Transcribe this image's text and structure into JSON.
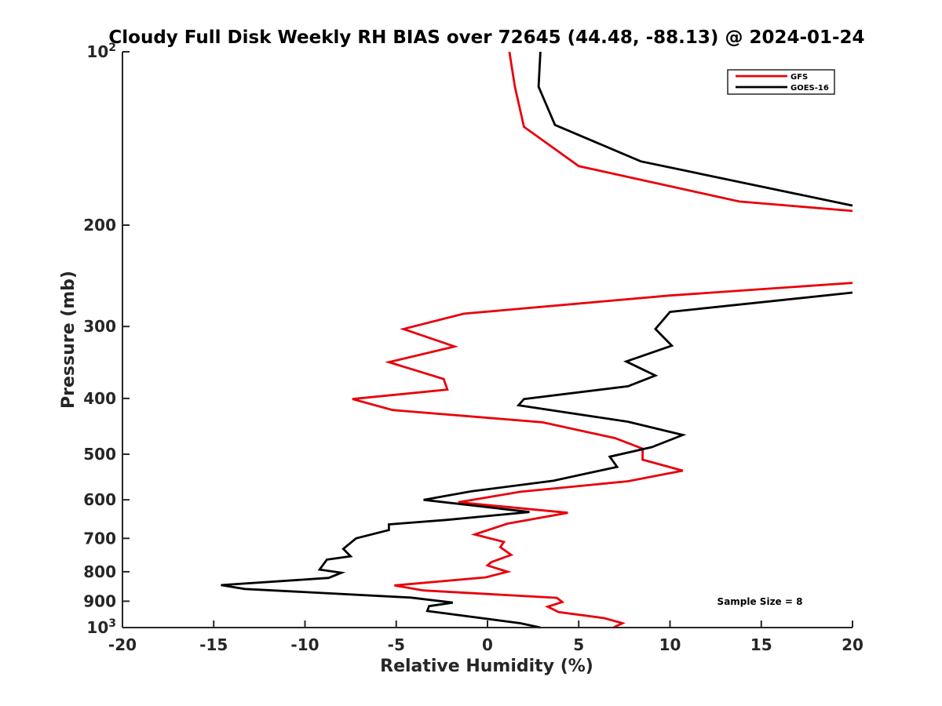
{
  "chart_data": {
    "type": "line",
    "title": "Cloudy Full Disk Weekly RH BIAS over 72645 (44.48, -88.13) @ 2024-01-24",
    "xlabel": "Relative Humidity (%)",
    "ylabel": "Pressure (mb)",
    "xlim": [
      -20,
      20
    ],
    "ylim": [
      100,
      1000
    ],
    "y_scale": "log",
    "y_reversed": true,
    "grid": false,
    "legend_position": "top-right",
    "x_ticks": [
      -20,
      -15,
      -10,
      -5,
      0,
      5,
      10,
      15,
      20
    ],
    "x_tick_labels": [
      "-20",
      "-15",
      "-10",
      "-5",
      "0",
      "5",
      "10",
      "15",
      "20"
    ],
    "y_ticks": [
      {
        "value": 100,
        "base": "10",
        "exp": "2"
      },
      {
        "value": 200,
        "label": "200"
      },
      {
        "value": 300,
        "label": "300"
      },
      {
        "value": 400,
        "label": "400"
      },
      {
        "value": 500,
        "label": "500"
      },
      {
        "value": 600,
        "label": "600"
      },
      {
        "value": 700,
        "label": "700"
      },
      {
        "value": 800,
        "label": "800"
      },
      {
        "value": 900,
        "label": "900"
      },
      {
        "value": 1000,
        "base": "10",
        "exp": "3"
      }
    ],
    "annotation": "Sample Size = 8",
    "series": [
      {
        "name": "GFS",
        "color": "#e8000b",
        "segments": [
          [
            {
              "x": 1.2,
              "p": 100
            },
            {
              "x": 1.5,
              "p": 115
            },
            {
              "x": 2.0,
              "p": 135
            },
            {
              "x": 5.0,
              "p": 158
            },
            {
              "x": 13.8,
              "p": 182
            },
            {
              "x": 20.0,
              "p": 189
            }
          ],
          [
            {
              "x": 20.0,
              "p": 252
            },
            {
              "x": 10.0,
              "p": 265
            },
            {
              "x": -1.3,
              "p": 285
            },
            {
              "x": -4.6,
              "p": 303
            },
            {
              "x": -1.8,
              "p": 325
            },
            {
              "x": -5.4,
              "p": 346
            },
            {
              "x": -2.4,
              "p": 370
            },
            {
              "x": -2.2,
              "p": 386
            },
            {
              "x": -7.4,
              "p": 401
            },
            {
              "x": -5.2,
              "p": 419
            },
            {
              "x": 3.0,
              "p": 440
            },
            {
              "x": 7.0,
              "p": 469
            },
            {
              "x": 8.5,
              "p": 489
            },
            {
              "x": 8.5,
              "p": 511
            },
            {
              "x": 10.7,
              "p": 534
            },
            {
              "x": 7.7,
              "p": 557
            },
            {
              "x": 1.8,
              "p": 581
            },
            {
              "x": -1.6,
              "p": 606
            },
            {
              "x": 4.4,
              "p": 632
            },
            {
              "x": 1.1,
              "p": 660
            },
            {
              "x": -0.7,
              "p": 689
            },
            {
              "x": 0.9,
              "p": 710
            },
            {
              "x": 0.7,
              "p": 725
            },
            {
              "x": 1.3,
              "p": 748
            },
            {
              "x": 0.2,
              "p": 770
            },
            {
              "x": 0.0,
              "p": 780
            },
            {
              "x": 1.1,
              "p": 800
            },
            {
              "x": -0.1,
              "p": 818
            },
            {
              "x": -5.1,
              "p": 845
            },
            {
              "x": -3.5,
              "p": 862
            },
            {
              "x": 3.8,
              "p": 888
            },
            {
              "x": 4.1,
              "p": 903
            },
            {
              "x": 3.3,
              "p": 920
            },
            {
              "x": 3.9,
              "p": 940
            },
            {
              "x": 6.4,
              "p": 963
            },
            {
              "x": 7.4,
              "p": 983
            },
            {
              "x": 6.9,
              "p": 1000
            }
          ]
        ]
      },
      {
        "name": "GOES-16",
        "color": "#000000",
        "segments": [
          [
            {
              "x": 2.9,
              "p": 100
            },
            {
              "x": 2.8,
              "p": 115
            },
            {
              "x": 3.7,
              "p": 134
            },
            {
              "x": 8.4,
              "p": 155
            },
            {
              "x": 20.0,
              "p": 185
            }
          ],
          [
            {
              "x": 20.0,
              "p": 262
            },
            {
              "x": 10.0,
              "p": 283
            },
            {
              "x": 9.2,
              "p": 303
            },
            {
              "x": 10.1,
              "p": 324
            },
            {
              "x": 7.6,
              "p": 345
            },
            {
              "x": 9.2,
              "p": 365
            },
            {
              "x": 7.7,
              "p": 381
            },
            {
              "x": 2.0,
              "p": 401
            },
            {
              "x": 1.7,
              "p": 411
            },
            {
              "x": 7.7,
              "p": 439
            },
            {
              "x": 10.7,
              "p": 463
            },
            {
              "x": 9.0,
              "p": 486
            },
            {
              "x": 6.7,
              "p": 505
            },
            {
              "x": 7.1,
              "p": 526
            },
            {
              "x": 3.6,
              "p": 556
            },
            {
              "x": -0.9,
              "p": 580
            },
            {
              "x": -3.5,
              "p": 600
            },
            {
              "x": 2.3,
              "p": 630
            },
            {
              "x": -2.2,
              "p": 650
            },
            {
              "x": -5.4,
              "p": 662
            },
            {
              "x": -5.4,
              "p": 677
            },
            {
              "x": -7.2,
              "p": 700
            },
            {
              "x": -7.9,
              "p": 730
            },
            {
              "x": -7.5,
              "p": 752
            },
            {
              "x": -8.8,
              "p": 762
            },
            {
              "x": -9.2,
              "p": 793
            },
            {
              "x": -8.0,
              "p": 803
            },
            {
              "x": -8.7,
              "p": 820
            },
            {
              "x": -14.6,
              "p": 844
            },
            {
              "x": -13.3,
              "p": 857
            },
            {
              "x": -4.2,
              "p": 887
            },
            {
              "x": -1.9,
              "p": 905
            },
            {
              "x": -3.2,
              "p": 918
            },
            {
              "x": -3.3,
              "p": 936
            },
            {
              "x": 1.8,
              "p": 983
            },
            {
              "x": 2.9,
              "p": 1000
            }
          ]
        ]
      }
    ]
  }
}
